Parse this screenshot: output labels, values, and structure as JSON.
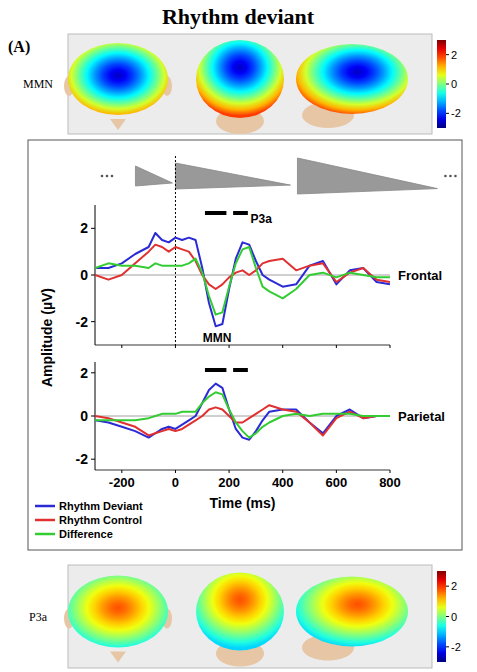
{
  "title": "Rhythm deviant",
  "panel_label": "(A)",
  "topomaps": [
    {
      "label": "MMN",
      "center_value": -2.6,
      "edge_value": 1.9,
      "colorbar_range": [
        -3,
        3
      ],
      "colorbar_ticks": [
        2,
        0,
        -2
      ]
    },
    {
      "label": "P3a",
      "center_value": 1.8,
      "edge_value": -1.0,
      "colorbar_range": [
        -3,
        3
      ],
      "colorbar_ticks": [
        2,
        0,
        -2
      ]
    }
  ],
  "chart_data": [
    {
      "type": "line",
      "label": "Frontal",
      "ylabel": "Amplitude (µV)",
      "xlim": [
        -300,
        800
      ],
      "xticks": [
        -200,
        0,
        200,
        400,
        600,
        800
      ],
      "ylim": [
        -3,
        3
      ],
      "yticks": [
        -2,
        0,
        2
      ],
      "tick_labels": "y",
      "legend": "bottom left",
      "stimulus_onset": 0,
      "zero_line": 0,
      "significance": [
        [
          110,
          190
        ],
        [
          215,
          270
        ]
      ],
      "annotations": [
        {
          "text": "MMN",
          "x": 155,
          "y": -2.7
        },
        {
          "text": "P3a",
          "x": 320,
          "y": 2.4
        }
      ],
      "x": [
        -300,
        -250,
        -200,
        -150,
        -100,
        -75,
        -50,
        -25,
        0,
        25,
        50,
        75,
        100,
        125,
        150,
        175,
        200,
        225,
        250,
        275,
        300,
        325,
        350,
        400,
        450,
        500,
        550,
        600,
        650,
        700,
        750,
        800
      ],
      "series": [
        {
          "name": "Rhythm Deviant",
          "color": "#2b2bd6",
          "values": [
            0.3,
            0.3,
            0.5,
            0.9,
            1.2,
            1.8,
            1.5,
            1.4,
            1.6,
            1.5,
            1.6,
            1.5,
            0.3,
            -1.2,
            -2.2,
            -2.1,
            -0.6,
            0.7,
            1.4,
            1.3,
            0.6,
            0.0,
            -0.2,
            -0.5,
            -0.4,
            0.4,
            0.6,
            -0.4,
            0.2,
            0.3,
            -0.3,
            -0.4
          ]
        },
        {
          "name": "Rhythm Control",
          "color": "#e03030",
          "values": [
            0.0,
            -0.2,
            0.0,
            0.5,
            1.0,
            1.3,
            1.2,
            1.0,
            1.2,
            1.1,
            1.0,
            0.6,
            0.0,
            -0.4,
            -0.6,
            -0.4,
            -0.1,
            0.1,
            0.2,
            0.0,
            0.2,
            0.5,
            0.6,
            0.7,
            0.2,
            0.4,
            0.5,
            -0.3,
            0.1,
            0.3,
            -0.2,
            -0.3
          ]
        },
        {
          "name": "Difference",
          "color": "#33cc33",
          "values": [
            0.3,
            0.5,
            0.4,
            0.4,
            0.3,
            0.5,
            0.4,
            0.4,
            0.4,
            0.4,
            0.5,
            0.7,
            0.1,
            -0.9,
            -1.7,
            -1.6,
            -0.5,
            0.5,
            1.1,
            1.2,
            0.3,
            -0.5,
            -0.7,
            -1.0,
            -0.6,
            0.0,
            0.1,
            -0.1,
            0.1,
            0.0,
            -0.1,
            -0.1
          ]
        }
      ]
    },
    {
      "type": "line",
      "label": "Parietal",
      "xlabel": "Time (ms)",
      "xlim": [
        -300,
        800
      ],
      "xticks": [
        -200,
        0,
        200,
        400,
        600,
        800
      ],
      "ylim": [
        -2.5,
        2.5
      ],
      "yticks": [
        -2,
        0,
        2
      ],
      "zero_line": 0,
      "significance": [
        [
          110,
          190
        ],
        [
          215,
          270
        ]
      ],
      "x": [
        -300,
        -250,
        -200,
        -150,
        -100,
        -75,
        -50,
        -25,
        0,
        25,
        50,
        75,
        100,
        125,
        150,
        175,
        200,
        225,
        250,
        275,
        300,
        325,
        350,
        400,
        450,
        500,
        550,
        600,
        650,
        700,
        750,
        800
      ],
      "series": [
        {
          "color": "#2b2bd6",
          "values": [
            -0.2,
            -0.3,
            -0.5,
            -0.7,
            -1.0,
            -0.8,
            -0.6,
            -0.5,
            -0.6,
            -0.4,
            -0.2,
            0.0,
            0.6,
            1.2,
            1.5,
            1.3,
            0.3,
            -0.6,
            -1.0,
            -1.1,
            -0.7,
            -0.2,
            0.2,
            0.3,
            0.3,
            -0.3,
            -0.8,
            0.0,
            0.3,
            -0.1,
            0.0,
            0.0
          ]
        },
        {
          "color": "#e03030",
          "values": [
            0.0,
            -0.1,
            -0.3,
            -0.5,
            -0.9,
            -0.8,
            -0.7,
            -0.6,
            -0.7,
            -0.6,
            -0.4,
            -0.2,
            0.0,
            0.3,
            0.4,
            0.3,
            0.0,
            -0.3,
            -0.3,
            -0.1,
            0.1,
            0.3,
            0.5,
            0.3,
            0.2,
            -0.3,
            -0.9,
            -0.1,
            0.2,
            -0.1,
            0.0,
            0.0
          ]
        },
        {
          "color": "#33cc33",
          "values": [
            -0.2,
            -0.2,
            -0.2,
            -0.2,
            -0.1,
            0.0,
            0.1,
            0.1,
            0.1,
            0.2,
            0.2,
            0.2,
            0.6,
            0.9,
            1.1,
            1.0,
            0.3,
            -0.3,
            -0.7,
            -1.0,
            -0.8,
            -0.5,
            -0.3,
            0.0,
            0.1,
            0.0,
            0.1,
            0.1,
            0.1,
            0.0,
            0.0,
            0.0
          ]
        }
      ]
    }
  ]
}
